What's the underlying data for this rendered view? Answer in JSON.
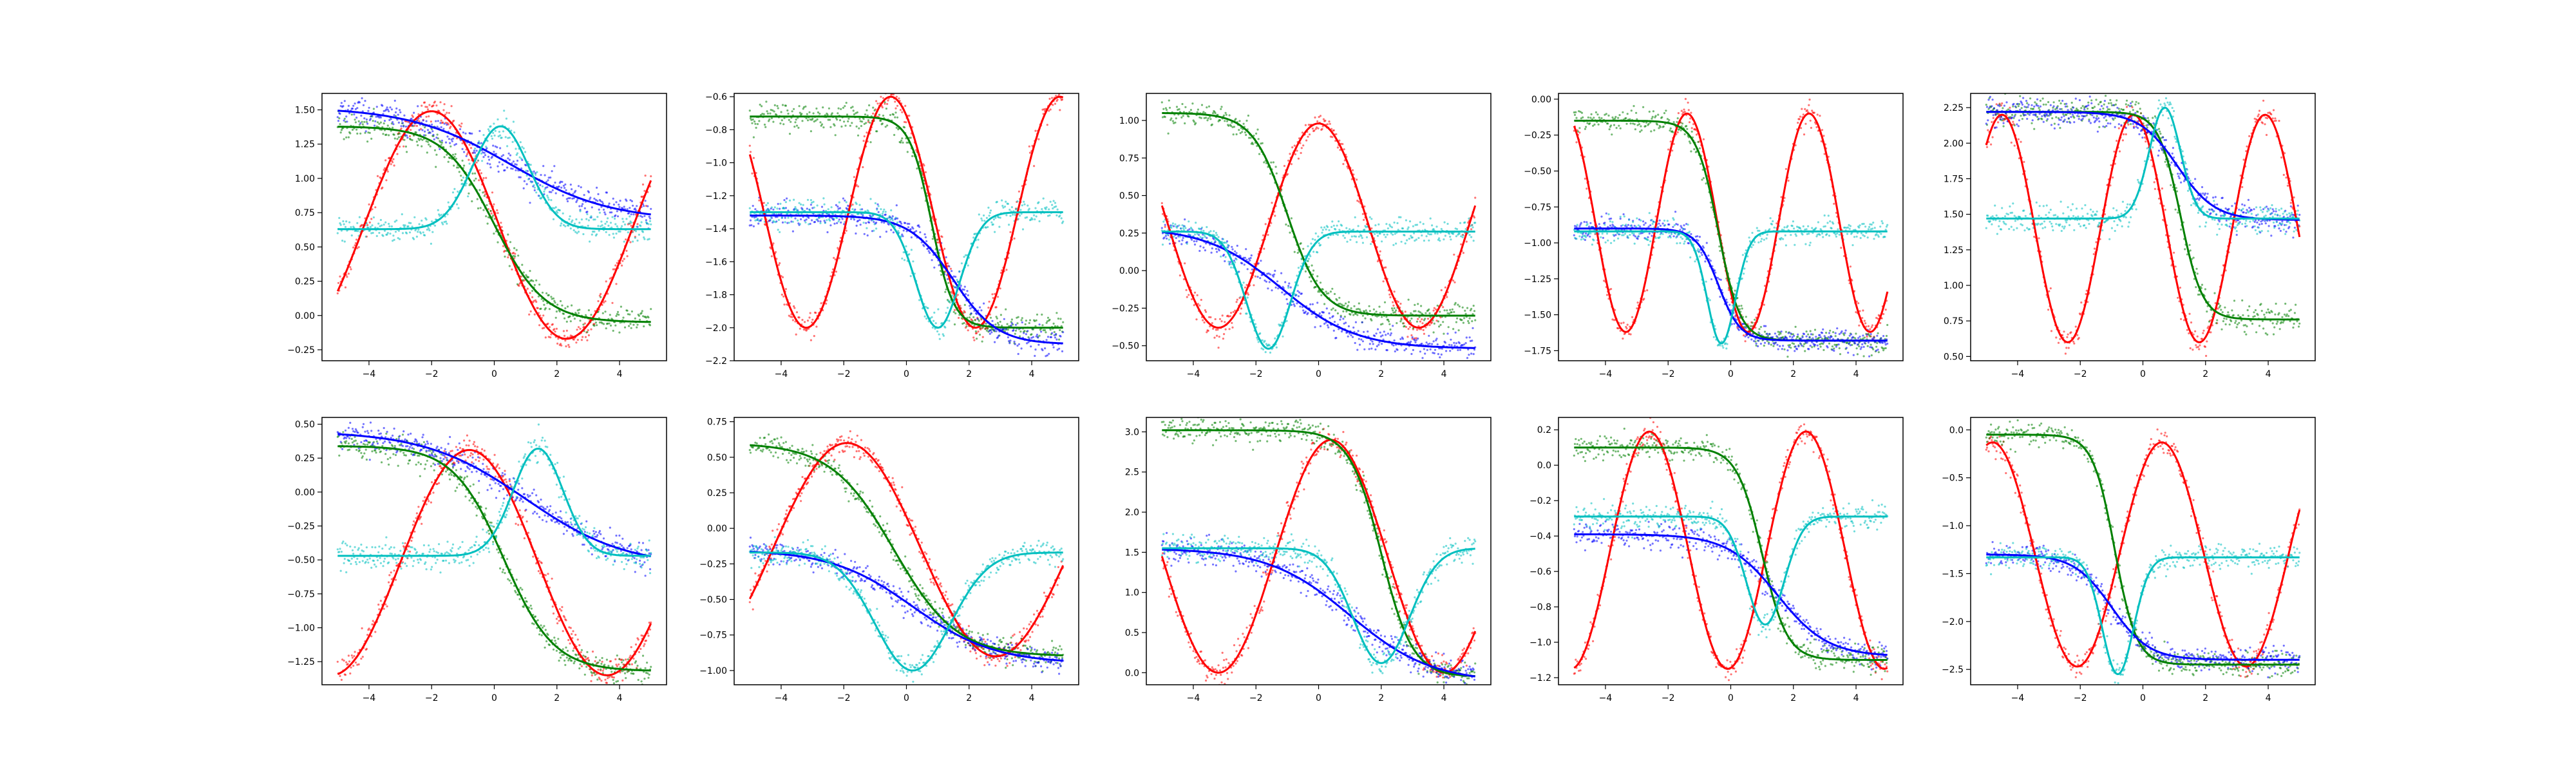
{
  "colors": {
    "red": "#ff0000",
    "green": "#008000",
    "blue": "#0000ff",
    "cyan": "#00bfbf"
  },
  "chart_data": [
    {
      "type": "line",
      "xlim": [
        -5.5,
        5.5
      ],
      "ylim": [
        -0.33,
        1.62
      ],
      "xticks": [
        -4,
        -2,
        0,
        2,
        4
      ],
      "yticks": [
        -0.25,
        0,
        0.25,
        0.5,
        0.75,
        1.0,
        1.25,
        1.5
      ],
      "ytick_labels": [
        "−0.25",
        "0.00",
        "0.25",
        "0.50",
        "0.75",
        "1.00",
        "1.25",
        "1.50"
      ],
      "scatter_noise": 0.05,
      "series": [
        {
          "color": "red",
          "kind": "sine",
          "amplitude": 0.83,
          "center": 0.66,
          "period": 8.6,
          "peak_x": -2.0
        },
        {
          "color": "green",
          "kind": "sigmoid",
          "low": -0.05,
          "high": 1.38,
          "mid": 0.0,
          "width": 0.8
        },
        {
          "color": "blue",
          "kind": "sigmoid",
          "low": 0.69,
          "high": 1.52,
          "mid": 0.5,
          "width": 1.6
        },
        {
          "color": "cyan",
          "kind": "gauss",
          "base": 0.63,
          "peak": 1.38,
          "center": 0.2,
          "width": 0.9
        }
      ]
    },
    {
      "type": "line",
      "xlim": [
        -5.5,
        5.5
      ],
      "ylim": [
        -2.2,
        -0.58
      ],
      "xticks": [
        -4,
        -2,
        0,
        2,
        4
      ],
      "yticks": [
        -2.2,
        -2.0,
        -1.8,
        -1.6,
        -1.4,
        -1.2,
        -1.0,
        -0.8,
        -0.6
      ],
      "ytick_labels": [
        "−2.2",
        "−2.0",
        "−1.8",
        "−1.6",
        "−1.4",
        "−1.2",
        "−1.0",
        "−0.8",
        "−0.6"
      ],
      "scatter_noise": 0.04,
      "series": [
        {
          "color": "red",
          "kind": "sine",
          "amplitude": 0.7,
          "center": -1.3,
          "period": 5.4,
          "peak_x": -0.5
        },
        {
          "color": "green",
          "kind": "sigmoid",
          "low": -2.0,
          "high": -0.72,
          "mid": 0.8,
          "width": 0.35
        },
        {
          "color": "blue",
          "kind": "sigmoid",
          "low": -2.1,
          "high": -1.32,
          "mid": 1.5,
          "width": 0.7
        },
        {
          "color": "cyan",
          "kind": "gauss",
          "base": -1.3,
          "peak": -2.0,
          "center": 1.0,
          "width": 0.7
        }
      ]
    },
    {
      "type": "line",
      "xlim": [
        -5.5,
        5.5
      ],
      "ylim": [
        -0.6,
        1.18
      ],
      "xticks": [
        -4,
        -2,
        0,
        2,
        4
      ],
      "yticks": [
        -0.5,
        -0.25,
        0,
        0.25,
        0.5,
        0.75,
        1.0
      ],
      "ytick_labels": [
        "−0.50",
        "−0.25",
        "0.00",
        "0.25",
        "0.50",
        "0.75",
        "1.00"
      ],
      "scatter_noise": 0.04,
      "series": [
        {
          "color": "red",
          "kind": "sine",
          "amplitude": 0.68,
          "center": 0.3,
          "period": 6.4,
          "peak_x": 0.0
        },
        {
          "color": "green",
          "kind": "sigmoid",
          "low": -0.3,
          "high": 1.05,
          "mid": -1.0,
          "width": 0.55
        },
        {
          "color": "blue",
          "kind": "sigmoid",
          "low": -0.52,
          "high": 0.29,
          "mid": -1.2,
          "width": 1.2
        },
        {
          "color": "cyan",
          "kind": "gauss",
          "base": 0.26,
          "peak": -0.52,
          "center": -1.6,
          "width": 0.7
        }
      ]
    },
    {
      "type": "line",
      "xlim": [
        -5.5,
        5.5
      ],
      "ylim": [
        -1.82,
        0.04
      ],
      "xticks": [
        -4,
        -2,
        0,
        2,
        4
      ],
      "yticks": [
        -1.75,
        -1.5,
        -1.25,
        -1.0,
        -0.75,
        -0.5,
        -0.25,
        0
      ],
      "ytick_labels": [
        "−1.75",
        "−1.50",
        "−1.25",
        "−1.00",
        "−0.75",
        "−0.50",
        "−0.25",
        "0.00"
      ],
      "scatter_noise": 0.04,
      "series": [
        {
          "color": "red",
          "kind": "sine",
          "amplitude": 0.76,
          "center": -0.86,
          "period": 3.9,
          "peak_x": -1.4
        },
        {
          "color": "green",
          "kind": "sigmoid",
          "low": -1.68,
          "high": -0.15,
          "mid": -0.4,
          "width": 0.35
        },
        {
          "color": "blue",
          "kind": "sigmoid",
          "low": -1.68,
          "high": -0.9,
          "mid": -0.4,
          "width": 0.35
        },
        {
          "color": "cyan",
          "kind": "gauss",
          "base": -0.92,
          "peak": -1.7,
          "center": -0.3,
          "width": 0.45
        }
      ]
    },
    {
      "type": "line",
      "xlim": [
        -5.5,
        5.5
      ],
      "ylim": [
        0.47,
        2.35
      ],
      "xticks": [
        -4,
        -2,
        0,
        2,
        4
      ],
      "yticks": [
        0.5,
        0.75,
        1.0,
        1.25,
        1.5,
        1.75,
        2.0,
        2.25
      ],
      "ytick_labels": [
        "0.50",
        "0.75",
        "1.00",
        "1.25",
        "1.50",
        "1.75",
        "2.00",
        "2.25"
      ],
      "scatter_noise": 0.05,
      "series": [
        {
          "color": "red",
          "kind": "sine",
          "amplitude": 0.8,
          "center": 1.4,
          "period": 4.2,
          "peak_x": -4.5
        },
        {
          "color": "green",
          "kind": "sigmoid",
          "low": 0.76,
          "high": 2.22,
          "mid": 1.2,
          "width": 0.35
        },
        {
          "color": "blue",
          "kind": "sigmoid",
          "low": 1.46,
          "high": 2.22,
          "mid": 1.1,
          "width": 0.6
        },
        {
          "color": "cyan",
          "kind": "gauss",
          "base": 1.47,
          "peak": 2.25,
          "center": 0.7,
          "width": 0.5
        }
      ]
    },
    {
      "type": "line",
      "xlim": [
        -5.5,
        5.5
      ],
      "ylim": [
        -1.42,
        0.55
      ],
      "xticks": [
        -4,
        -2,
        0,
        2,
        4
      ],
      "yticks": [
        -1.25,
        -1.0,
        -0.75,
        -0.5,
        -0.25,
        0,
        0.25,
        0.5
      ],
      "ytick_labels": [
        "−1.25",
        "−1.00",
        "−0.75",
        "−0.50",
        "−0.25",
        "0.00",
        "0.25",
        "0.50"
      ],
      "scatter_noise": 0.05,
      "series": [
        {
          "color": "red",
          "kind": "sine",
          "amplitude": 0.83,
          "center": -0.52,
          "period": 8.8,
          "peak_x": -0.8
        },
        {
          "color": "green",
          "kind": "sigmoid",
          "low": -1.32,
          "high": 0.34,
          "mid": 0.3,
          "width": 0.8
        },
        {
          "color": "blue",
          "kind": "sigmoid",
          "low": -0.55,
          "high": 0.45,
          "mid": 1.0,
          "width": 1.6
        },
        {
          "color": "cyan",
          "kind": "gauss",
          "base": -0.47,
          "peak": 0.32,
          "center": 1.4,
          "width": 0.8
        }
      ]
    },
    {
      "type": "line",
      "xlim": [
        -5.5,
        5.5
      ],
      "ylim": [
        -1.1,
        0.78
      ],
      "xticks": [
        -4,
        -2,
        0,
        2,
        4
      ],
      "yticks": [
        -1.0,
        -0.75,
        -0.5,
        -0.25,
        0,
        0.25,
        0.5,
        0.75
      ],
      "ytick_labels": [
        "−1.00",
        "−0.75",
        "−0.50",
        "−0.25",
        "0.00",
        "0.25",
        "0.50",
        "0.75"
      ],
      "scatter_noise": 0.04,
      "series": [
        {
          "color": "red",
          "kind": "sine",
          "amplitude": 0.75,
          "center": -0.15,
          "period": 9.5,
          "peak_x": -1.9
        },
        {
          "color": "green",
          "kind": "sigmoid",
          "low": -0.9,
          "high": 0.6,
          "mid": -0.4,
          "width": 1.0
        },
        {
          "color": "blue",
          "kind": "sigmoid",
          "low": -0.95,
          "high": -0.15,
          "mid": 0.2,
          "width": 1.3
        },
        {
          "color": "cyan",
          "kind": "gauss",
          "base": -0.17,
          "peak": -1.0,
          "center": 0.2,
          "width": 1.2
        }
      ]
    },
    {
      "type": "line",
      "xlim": [
        -5.5,
        5.5
      ],
      "ylim": [
        -0.15,
        3.18
      ],
      "xticks": [
        -4,
        -2,
        0,
        2,
        4
      ],
      "yticks": [
        0,
        0.5,
        1.0,
        1.5,
        2.0,
        2.5,
        3.0
      ],
      "ytick_labels": [
        "0.0",
        "0.5",
        "1.0",
        "1.5",
        "2.0",
        "2.5",
        "3.0"
      ],
      "scatter_noise": 0.08,
      "series": [
        {
          "color": "red",
          "kind": "sine",
          "amplitude": 1.45,
          "center": 1.45,
          "period": 7.2,
          "peak_x": 0.4
        },
        {
          "color": "green",
          "kind": "sigmoid",
          "low": -0.05,
          "high": 3.02,
          "mid": 2.0,
          "width": 0.5
        },
        {
          "color": "blue",
          "kind": "sigmoid",
          "low": -0.12,
          "high": 1.55,
          "mid": 1.0,
          "width": 1.3
        },
        {
          "color": "cyan",
          "kind": "gauss",
          "base": 1.55,
          "peak": 0.12,
          "center": 2.0,
          "width": 0.9
        }
      ]
    },
    {
      "type": "line",
      "xlim": [
        -5.5,
        5.5
      ],
      "ylim": [
        -1.24,
        0.27
      ],
      "xticks": [
        -4,
        -2,
        0,
        2,
        4
      ],
      "yticks": [
        -1.2,
        -1.0,
        -0.8,
        -0.6,
        -0.4,
        -0.2,
        0,
        0.2
      ],
      "ytick_labels": [
        "−1.2",
        "−1.0",
        "−0.8",
        "−0.6",
        "−0.4",
        "−0.2",
        "0.0",
        "0.2"
      ],
      "scatter_noise": 0.035,
      "series": [
        {
          "color": "red",
          "kind": "sine",
          "amplitude": 0.67,
          "center": -0.48,
          "period": 5.0,
          "peak_x": -2.6
        },
        {
          "color": "green",
          "kind": "sigmoid",
          "low": -1.1,
          "high": 0.1,
          "mid": 1.0,
          "width": 0.4
        },
        {
          "color": "blue",
          "kind": "sigmoid",
          "low": -1.08,
          "high": -0.39,
          "mid": 1.5,
          "width": 0.8
        },
        {
          "color": "cyan",
          "kind": "gauss",
          "base": -0.29,
          "peak": -0.9,
          "center": 1.1,
          "width": 0.6
        }
      ]
    },
    {
      "type": "line",
      "xlim": [
        -5.5,
        5.5
      ],
      "ylim": [
        -2.66,
        0.13
      ],
      "xticks": [
        -4,
        -2,
        0,
        2,
        4
      ],
      "yticks": [
        -2.5,
        -2.0,
        -1.5,
        -1.0,
        -0.5,
        0
      ],
      "ytick_labels": [
        "−2.5",
        "−2.0",
        "−1.5",
        "−1.0",
        "−0.5",
        "0.0"
      ],
      "scatter_noise": 0.06,
      "series": [
        {
          "color": "red",
          "kind": "sine",
          "amplitude": 1.17,
          "center": -1.3,
          "period": 5.4,
          "peak_x": 0.6
        },
        {
          "color": "green",
          "kind": "sigmoid",
          "low": -2.45,
          "high": -0.05,
          "mid": -0.9,
          "width": 0.35
        },
        {
          "color": "blue",
          "kind": "sigmoid",
          "low": -2.4,
          "high": -1.3,
          "mid": -1.0,
          "width": 0.6
        },
        {
          "color": "cyan",
          "kind": "gauss",
          "base": -1.33,
          "peak": -2.55,
          "center": -0.8,
          "width": 0.5
        }
      ]
    }
  ]
}
